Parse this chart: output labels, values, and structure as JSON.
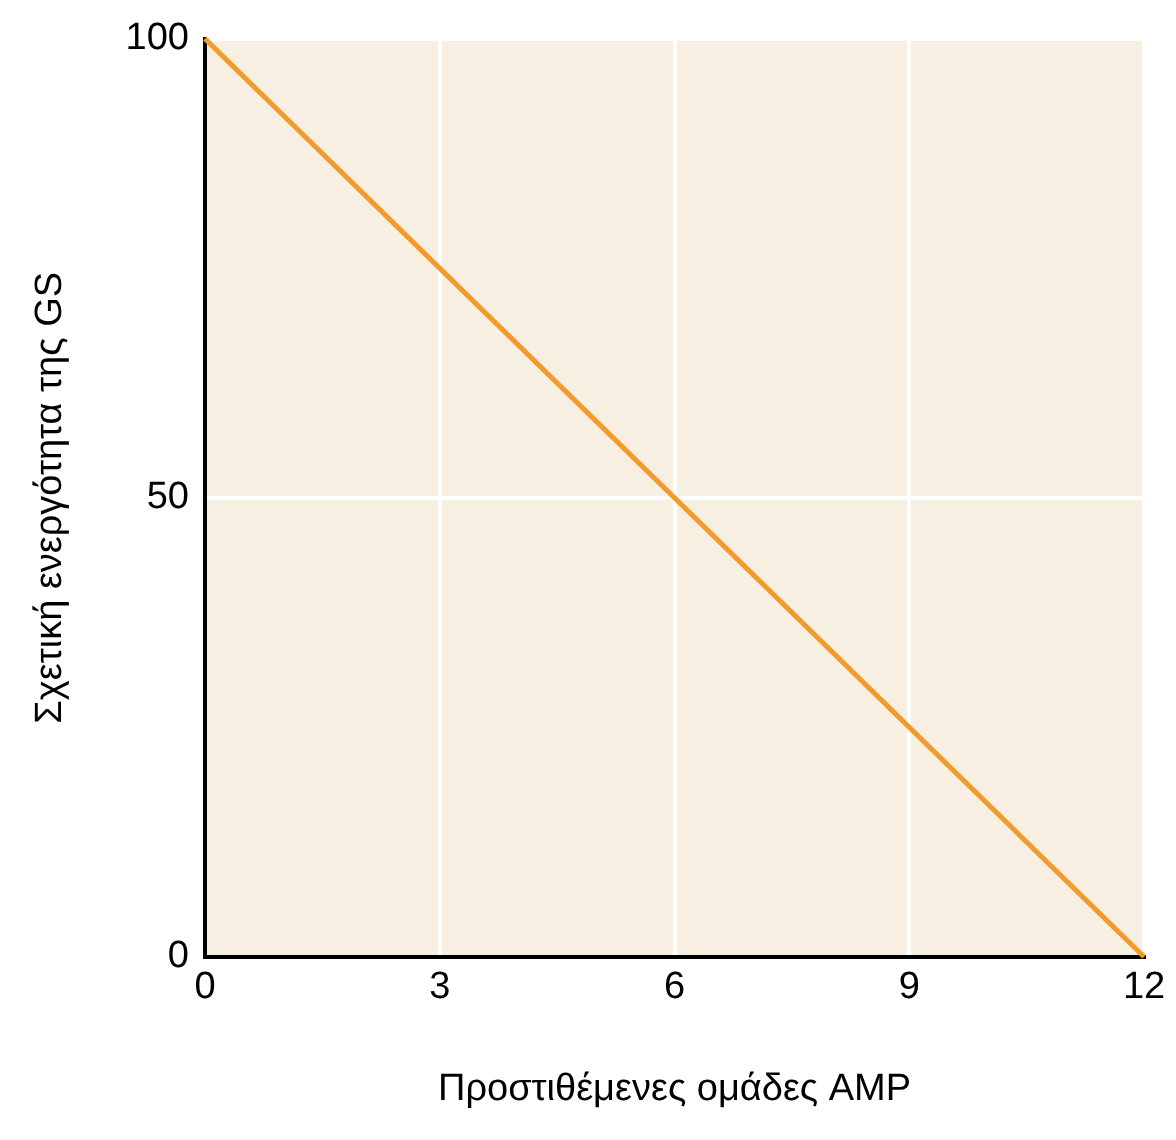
{
  "chart_data": {
    "type": "line",
    "xlabel": "Προστιθέμενες ομάδες AMP",
    "ylabel": "Σχετική ενεργότητα της GS",
    "x": [
      0,
      12
    ],
    "series": [
      {
        "color": "#f39a2b",
        "values": [
          100,
          0
        ]
      }
    ],
    "xlim": [
      0,
      12
    ],
    "xticks": [
      0,
      3,
      6,
      9,
      12
    ],
    "ylim": [
      0,
      100
    ],
    "yticks": [
      0,
      50,
      100
    ],
    "grid": true,
    "marker": "none",
    "line_style": "solid",
    "legend": false
  }
}
